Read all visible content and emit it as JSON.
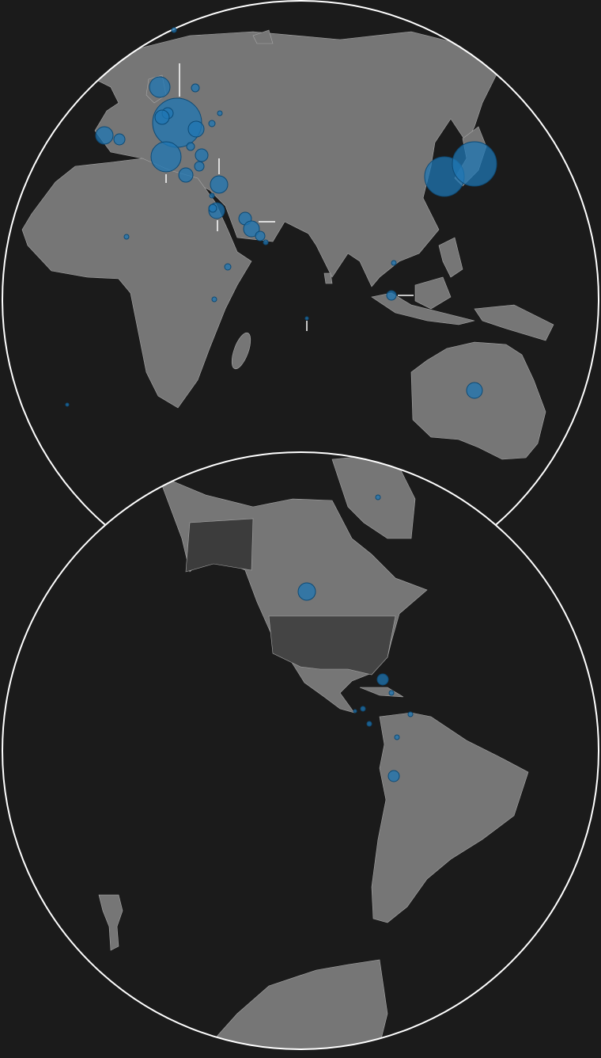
{
  "map": {
    "type": "bubble",
    "values": [
      961,
      361,
      169,
      121,
      49,
      49,
      81,
      100,
      25,
      64,
      81,
      36,
      25,
      16,
      9,
      121,
      100,
      25,
      9,
      64,
      100,
      36,
      9,
      625,
      784,
      100,
      36,
      9,
      16,
      9,
      9,
      4,
      4,
      9,
      121,
      49,
      9,
      9,
      49,
      9,
      9,
      4,
      9,
      9
    ]
  }
}
